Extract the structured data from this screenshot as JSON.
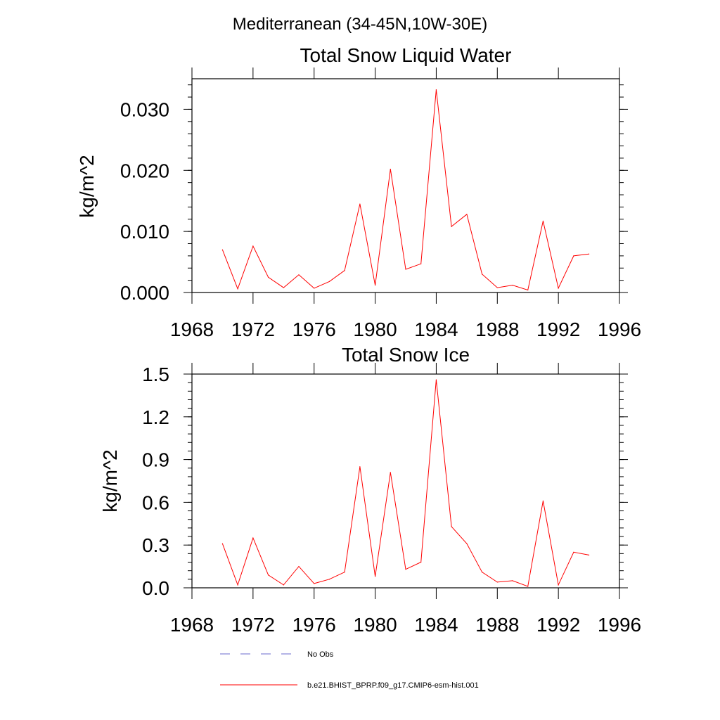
{
  "figure_title": "Mediterranean (34-45N,10W-30E)",
  "chart_data": [
    {
      "type": "line",
      "title": "Total Snow Liquid Water",
      "xlabel": "",
      "ylabel": "kg/m^2",
      "xlim": [
        1968,
        1996
      ],
      "ylim": [
        0,
        0.035
      ],
      "xticks": [
        1968,
        1972,
        1976,
        1980,
        1984,
        1988,
        1992,
        1996
      ],
      "xtick_labels": [
        "1968",
        "1972",
        "1976",
        "1980",
        "1984",
        "1988",
        "1992",
        "1996"
      ],
      "yticks": [
        0,
        0.01,
        0.02,
        0.03
      ],
      "ytick_labels": [
        "0.000",
        "0.010",
        "0.020",
        "0.030"
      ],
      "grid": false,
      "series": [
        {
          "name": "b.e21.BHIST_BPRP.f09_g17.CMIP6-esm-hist.001",
          "color": "#ff0000",
          "x": [
            1970,
            1971,
            1972,
            1973,
            1974,
            1975,
            1976,
            1977,
            1978,
            1979,
            1980,
            1981,
            1982,
            1983,
            1984,
            1985,
            1986,
            1987,
            1988,
            1989,
            1990,
            1991,
            1992,
            1993,
            1994
          ],
          "y": [
            0.007,
            0.0006,
            0.0076,
            0.0025,
            0.0008,
            0.0029,
            0.0007,
            0.0018,
            0.0036,
            0.0145,
            0.0012,
            0.0202,
            0.0038,
            0.0047,
            0.0332,
            0.0108,
            0.0128,
            0.003,
            0.0008,
            0.0012,
            0.0004,
            0.0117,
            0.0007,
            0.006,
            0.0063
          ]
        }
      ]
    },
    {
      "type": "line",
      "title": "Total Snow Ice",
      "xlabel": "",
      "ylabel": "kg/m^2",
      "xlim": [
        1968,
        1996
      ],
      "ylim": [
        0,
        1.5
      ],
      "xticks": [
        1968,
        1972,
        1976,
        1980,
        1984,
        1988,
        1992,
        1996
      ],
      "xtick_labels": [
        "1968",
        "1972",
        "1976",
        "1980",
        "1984",
        "1988",
        "1992",
        "1996"
      ],
      "yticks": [
        0,
        0.3,
        0.6,
        0.9,
        1.2,
        1.5
      ],
      "ytick_labels": [
        "0.0",
        "0.3",
        "0.6",
        "0.9",
        "1.2",
        "1.5"
      ],
      "grid": false,
      "series": [
        {
          "name": "b.e21.BHIST_BPRP.f09_g17.CMIP6-esm-hist.001",
          "color": "#ff0000",
          "x": [
            1970,
            1971,
            1972,
            1973,
            1974,
            1975,
            1976,
            1977,
            1978,
            1979,
            1980,
            1981,
            1982,
            1983,
            1984,
            1985,
            1986,
            1987,
            1988,
            1989,
            1990,
            1991,
            1992,
            1993,
            1994
          ],
          "y": [
            0.31,
            0.02,
            0.35,
            0.09,
            0.02,
            0.15,
            0.03,
            0.06,
            0.11,
            0.85,
            0.08,
            0.81,
            0.13,
            0.18,
            1.46,
            0.43,
            0.31,
            0.11,
            0.04,
            0.05,
            0.01,
            0.61,
            0.02,
            0.25,
            0.23
          ]
        }
      ]
    }
  ],
  "legend": {
    "placement": "bottom",
    "entries": [
      {
        "label": "No Obs",
        "color": "#6a6acd",
        "style": "dashed"
      },
      {
        "label": "b.e21.BHIST_BPRP.f09_g17.CMIP6-esm-hist.001",
        "color": "#ff0000",
        "style": "solid"
      }
    ]
  }
}
